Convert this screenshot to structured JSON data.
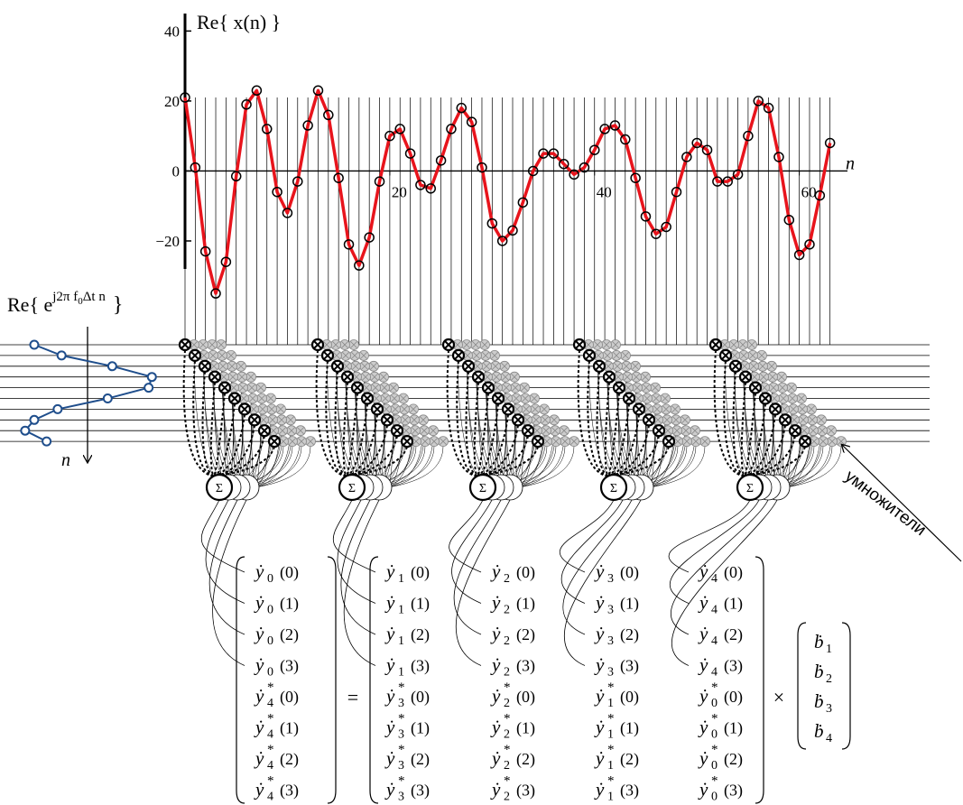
{
  "chart_data": [
    {
      "type": "line",
      "title": "Re{ x(n) }",
      "x_label": "n",
      "x": [
        0,
        1,
        2,
        3,
        4,
        5,
        6,
        7,
        8,
        9,
        10,
        11,
        12,
        13,
        14,
        15,
        16,
        17,
        18,
        19,
        20,
        21,
        22,
        23,
        24,
        25,
        26,
        27,
        28,
        29,
        30,
        31,
        32,
        33,
        34,
        35,
        36,
        37,
        38,
        39,
        40,
        41,
        42,
        43,
        44,
        45,
        46,
        47,
        48,
        49,
        50,
        51,
        52,
        53,
        54,
        55,
        56,
        57,
        58,
        59,
        60,
        61,
        62,
        63
      ],
      "values": [
        21,
        1,
        -23,
        -35,
        -26,
        -1.5,
        19,
        23,
        12,
        -6,
        -12,
        -3,
        13,
        23,
        16,
        -2,
        -21,
        -27,
        -19,
        -3,
        10,
        12,
        5,
        -4,
        -5,
        3,
        12,
        18,
        14,
        1,
        -15,
        -20,
        -17,
        -9,
        0,
        5,
        5,
        2,
        -1,
        1,
        6,
        12,
        13,
        9,
        -2,
        -13,
        -18,
        -16,
        -6,
        4,
        8,
        6,
        -3,
        -3,
        -1,
        10,
        20,
        18,
        4,
        -14,
        -24,
        -21,
        -7,
        8
      ],
      "color": "#e8141c",
      "marker_color": "#000000",
      "xlim": [
        0,
        64
      ],
      "ylim": [
        -28,
        45
      ],
      "xticks": [
        20,
        40,
        60
      ],
      "yticks": [
        {
          "value": -20,
          "label": "−20"
        },
        0,
        20,
        40
      ]
    },
    {
      "type": "line",
      "orientation": "vertical",
      "title_parts": {
        "prefix": "Re{ e",
        "exp": "j2π f",
        "exp_sub": "0",
        "exp_tail": "Δt n",
        "suffix": "}"
      },
      "y_label": "n",
      "values": [
        -0.82,
        -0.4,
        0.38,
        0.99,
        0.94,
        0.31,
        -0.46,
        -0.82,
        -0.96,
        -0.63
      ],
      "color": "#1f4e8c",
      "xlim": [
        -1,
        1
      ]
    }
  ],
  "diagram": {
    "sum_symbol": "Σ",
    "multiplier_label": "умножители",
    "equation": {
      "lhs": [
        {
          "sym": "ẏ",
          "sub": "0",
          "arg": "(0)"
        },
        {
          "sym": "ẏ",
          "sub": "0",
          "arg": "(1)"
        },
        {
          "sym": "ẏ",
          "sub": "0",
          "arg": "(2)"
        },
        {
          "sym": "ẏ",
          "sub": "0",
          "arg": "(3)"
        },
        {
          "sym": "ẏ",
          "sub": "4",
          "sup": "*",
          "arg": "(0)"
        },
        {
          "sym": "ẏ",
          "sub": "4",
          "sup": "*",
          "arg": "(1)"
        },
        {
          "sym": "ẏ",
          "sub": "4",
          "sup": "*",
          "arg": "(2)"
        },
        {
          "sym": "ẏ",
          "sub": "4",
          "sup": "*",
          "arg": "(3)"
        }
      ],
      "equals": "=",
      "rhs": [
        [
          {
            "sym": "ẏ",
            "sub": "1",
            "arg": "(0)"
          },
          {
            "sym": "ẏ",
            "sub": "2",
            "arg": "(0)"
          },
          {
            "sym": "ẏ",
            "sub": "3",
            "arg": "(0)"
          },
          {
            "sym": "ẏ",
            "sub": "4",
            "arg": "(0)"
          }
        ],
        [
          {
            "sym": "ẏ",
            "sub": "1",
            "arg": "(1)"
          },
          {
            "sym": "ẏ",
            "sub": "2",
            "arg": "(1)"
          },
          {
            "sym": "ẏ",
            "sub": "3",
            "arg": "(1)"
          },
          {
            "sym": "ẏ",
            "sub": "4",
            "arg": "(1)"
          }
        ],
        [
          {
            "sym": "ẏ",
            "sub": "1",
            "arg": "(2)"
          },
          {
            "sym": "ẏ",
            "sub": "2",
            "arg": "(2)"
          },
          {
            "sym": "ẏ",
            "sub": "3",
            "arg": "(2)"
          },
          {
            "sym": "ẏ",
            "sub": "4",
            "arg": "(2)"
          }
        ],
        [
          {
            "sym": "ẏ",
            "sub": "1",
            "arg": "(3)"
          },
          {
            "sym": "ẏ",
            "sub": "2",
            "arg": "(3)"
          },
          {
            "sym": "ẏ",
            "sub": "3",
            "arg": "(3)"
          },
          {
            "sym": "ẏ",
            "sub": "4",
            "arg": "(3)"
          }
        ],
        [
          {
            "sym": "ẏ",
            "sub": "3",
            "sup": "*",
            "arg": "(0)"
          },
          {
            "sym": "ẏ",
            "sub": "2",
            "sup": "*",
            "arg": "(0)"
          },
          {
            "sym": "ẏ",
            "sub": "1",
            "sup": "*",
            "arg": "(0)"
          },
          {
            "sym": "ẏ",
            "sub": "0",
            "sup": "*",
            "arg": "(0)"
          }
        ],
        [
          {
            "sym": "ẏ",
            "sub": "3",
            "sup": "*",
            "arg": "(1)"
          },
          {
            "sym": "ẏ",
            "sub": "2",
            "sup": "*",
            "arg": "(1)"
          },
          {
            "sym": "ẏ",
            "sub": "1",
            "sup": "*",
            "arg": "(1)"
          },
          {
            "sym": "ẏ",
            "sub": "0",
            "sup": "*",
            "arg": "(1)"
          }
        ],
        [
          {
            "sym": "ẏ",
            "sub": "3",
            "sup": "*",
            "arg": "(2)"
          },
          {
            "sym": "ẏ",
            "sub": "2",
            "sup": "*",
            "arg": "(2)"
          },
          {
            "sym": "ẏ",
            "sub": "1",
            "sup": "*",
            "arg": "(2)"
          },
          {
            "sym": "ẏ",
            "sub": "0",
            "sup": "*",
            "arg": "(2)"
          }
        ],
        [
          {
            "sym": "ẏ",
            "sub": "3",
            "sup": "*",
            "arg": "(3)"
          },
          {
            "sym": "ẏ",
            "sub": "2",
            "sup": "*",
            "arg": "(3)"
          },
          {
            "sym": "ẏ",
            "sub": "1",
            "sup": "*",
            "arg": "(3)"
          },
          {
            "sym": "ẏ",
            "sub": "0",
            "sup": "*",
            "arg": "(3)"
          }
        ]
      ],
      "times": "×",
      "vector": [
        {
          "sym": "ḃ",
          "sub": "1"
        },
        {
          "sym": "ḃ",
          "sub": "2"
        },
        {
          "sym": "ḃ",
          "sub": "3"
        },
        {
          "sym": "ḃ",
          "sub": "4"
        }
      ]
    }
  }
}
